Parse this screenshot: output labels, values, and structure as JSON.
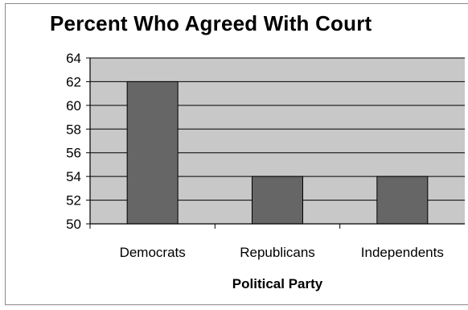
{
  "chart_data": {
    "type": "bar",
    "title": "Percent Who Agreed With Court",
    "xlabel": "Political Party",
    "ylabel": "",
    "categories": [
      "Democrats",
      "Republicans",
      "Independents"
    ],
    "values": [
      62,
      54,
      54
    ],
    "ylim": [
      50,
      64
    ],
    "yticks": [
      50,
      52,
      54,
      56,
      58,
      60,
      62,
      64
    ],
    "grid": true,
    "legend": "none",
    "colors": {
      "bar": "#666666",
      "bar_stroke": "#000000",
      "plot_background": "#c8c8c8",
      "gridline": "#000000"
    }
  }
}
